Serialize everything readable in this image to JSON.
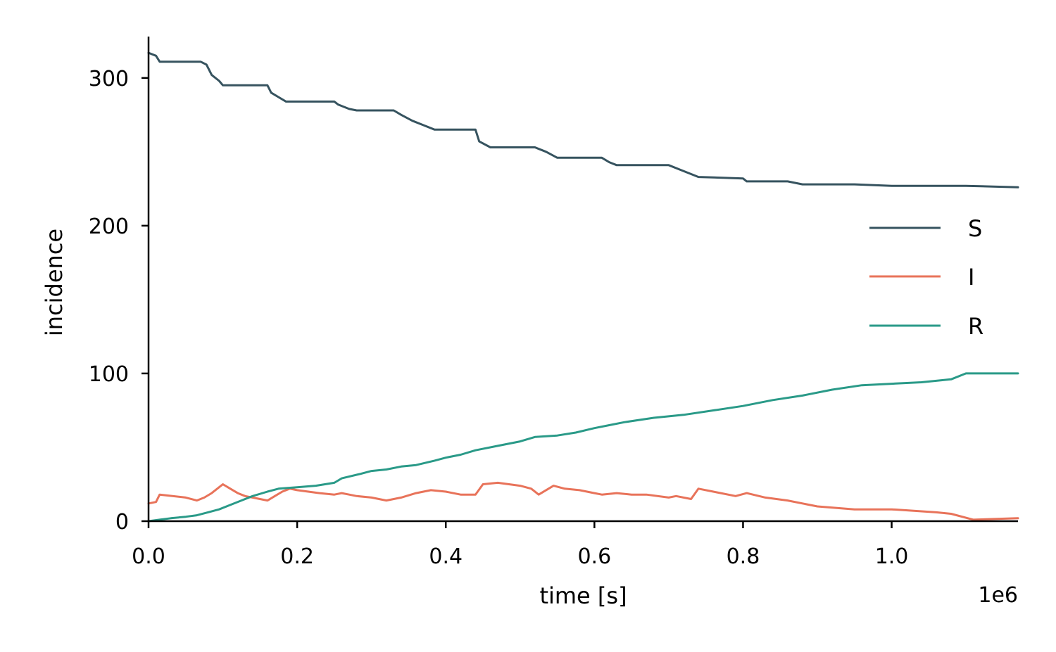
{
  "chart_data": {
    "type": "line",
    "xlabel": "time [s]",
    "ylabel": "incidence",
    "x_offset_label": "1e6",
    "xlim": [
      0,
      1170000
    ],
    "ylim": [
      0,
      328
    ],
    "x_ticks": [
      {
        "value": 0,
        "label": "0.0"
      },
      {
        "value": 200000,
        "label": "0.2"
      },
      {
        "value": 400000,
        "label": "0.4"
      },
      {
        "value": 600000,
        "label": "0.6"
      },
      {
        "value": 800000,
        "label": "0.8"
      },
      {
        "value": 1000000,
        "label": "1.0"
      }
    ],
    "y_ticks": [
      {
        "value": 0,
        "label": "0"
      },
      {
        "value": 100,
        "label": "100"
      },
      {
        "value": 200,
        "label": "200"
      },
      {
        "value": 300,
        "label": "300"
      }
    ],
    "grid": false,
    "legend": "right",
    "series": [
      {
        "name": "S",
        "color": "#36535f",
        "x": [
          0,
          10000,
          15000,
          70000,
          78000,
          85000,
          95000,
          100000,
          160000,
          165000,
          175000,
          185000,
          250000,
          255000,
          270000,
          280000,
          330000,
          340000,
          355000,
          370000,
          385000,
          440000,
          445000,
          460000,
          520000,
          535000,
          550000,
          610000,
          620000,
          630000,
          700000,
          715000,
          740000,
          800000,
          805000,
          860000,
          880000,
          950000,
          1000000,
          1100000,
          1170000
        ],
        "y": [
          317,
          315,
          311,
          311,
          309,
          302,
          298,
          295,
          295,
          290,
          287,
          284,
          284,
          282,
          279,
          278,
          278,
          275,
          271,
          268,
          265,
          265,
          257,
          253,
          253,
          250,
          246,
          246,
          243,
          241,
          241,
          238,
          233,
          232,
          230,
          230,
          228,
          228,
          227,
          227,
          226
        ]
      },
      {
        "name": "I",
        "color": "#e8735a",
        "x": [
          0,
          10000,
          15000,
          50000,
          65000,
          75000,
          85000,
          95000,
          100000,
          110000,
          120000,
          130000,
          150000,
          160000,
          170000,
          180000,
          190000,
          200000,
          230000,
          250000,
          260000,
          270000,
          280000,
          300000,
          320000,
          340000,
          360000,
          380000,
          400000,
          420000,
          440000,
          450000,
          470000,
          500000,
          515000,
          525000,
          545000,
          560000,
          580000,
          600000,
          610000,
          630000,
          650000,
          670000,
          700000,
          710000,
          730000,
          740000,
          760000,
          790000,
          805000,
          830000,
          860000,
          900000,
          950000,
          1000000,
          1060000,
          1080000,
          1110000,
          1170000
        ],
        "y": [
          12,
          13,
          18,
          16,
          14,
          16,
          19,
          23,
          25,
          22,
          19,
          17,
          15,
          14,
          17,
          20,
          22,
          21,
          19,
          18,
          19,
          18,
          17,
          16,
          14,
          16,
          19,
          21,
          20,
          18,
          18,
          25,
          26,
          24,
          22,
          18,
          24,
          22,
          21,
          19,
          18,
          19,
          18,
          18,
          16,
          17,
          15,
          22,
          20,
          17,
          19,
          16,
          14,
          10,
          8,
          8,
          6,
          5,
          1,
          2
        ]
      },
      {
        "name": "R",
        "color": "#2a9a88",
        "x": [
          0,
          15000,
          30000,
          50000,
          65000,
          80000,
          95000,
          110000,
          125000,
          140000,
          160000,
          175000,
          200000,
          225000,
          250000,
          260000,
          285000,
          300000,
          320000,
          340000,
          360000,
          385000,
          400000,
          420000,
          440000,
          470000,
          500000,
          520000,
          550000,
          575000,
          600000,
          620000,
          640000,
          680000,
          720000,
          760000,
          800000,
          840000,
          880000,
          920000,
          960000,
          1000000,
          1040000,
          1080000,
          1100000,
          1170000
        ],
        "y": [
          0,
          1,
          2,
          3,
          4,
          6,
          8,
          11,
          14,
          17,
          20,
          22,
          23,
          24,
          26,
          29,
          32,
          34,
          35,
          37,
          38,
          41,
          43,
          45,
          48,
          51,
          54,
          57,
          58,
          60,
          63,
          65,
          67,
          70,
          72,
          75,
          78,
          82,
          85,
          89,
          92,
          93,
          94,
          96,
          100,
          100
        ]
      }
    ]
  }
}
